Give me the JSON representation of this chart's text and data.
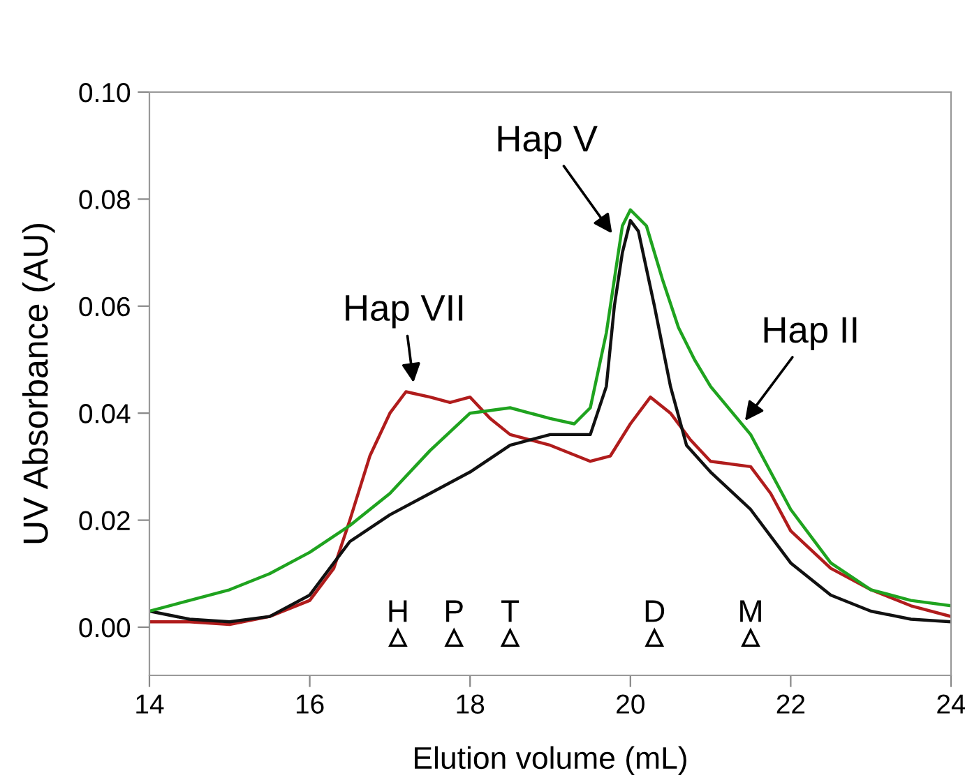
{
  "chart_data": {
    "type": "line",
    "xlabel": "Elution volume (mL)",
    "ylabel": "UV Absorbance (AU)",
    "xlim": [
      14,
      24
    ],
    "xticks": [
      14,
      16,
      18,
      20,
      22,
      24
    ],
    "ylim": [
      -0.009,
      0.1
    ],
    "yticks": [
      {
        "value": 0,
        "label": "0.00"
      },
      {
        "value": 0.02,
        "label": "0.02"
      },
      {
        "value": 0.04,
        "label": "0.04"
      },
      {
        "value": 0.06,
        "label": "0.06"
      },
      {
        "value": 0.08,
        "label": "0.08"
      },
      {
        "value": 0.1,
        "label": "0.10"
      }
    ],
    "grid": false,
    "legend": false,
    "line_style": "solid",
    "series": [
      {
        "color": "#b01c1c",
        "x": [
          14,
          14.5,
          15,
          15.5,
          16,
          16.3,
          16.5,
          16.75,
          17,
          17.2,
          17.5,
          17.75,
          18,
          18.25,
          18.5,
          19,
          19.5,
          19.75,
          20,
          20.25,
          20.5,
          20.75,
          21,
          21.5,
          21.75,
          22,
          22.5,
          23,
          23.5,
          24
        ],
        "values": [
          0.001,
          0.001,
          0.0005,
          0.002,
          0.005,
          0.011,
          0.02,
          0.032,
          0.04,
          0.044,
          0.043,
          0.042,
          0.043,
          0.039,
          0.036,
          0.034,
          0.031,
          0.032,
          0.038,
          0.043,
          0.04,
          0.035,
          0.031,
          0.03,
          0.025,
          0.018,
          0.011,
          0.007,
          0.004,
          0.002
        ]
      },
      {
        "color": "#111111",
        "x": [
          14,
          14.5,
          15,
          15.5,
          16,
          16.3,
          16.5,
          17,
          17.5,
          18,
          18.5,
          19,
          19.5,
          19.7,
          19.8,
          19.9,
          20,
          20.1,
          20.3,
          20.5,
          20.7,
          21,
          21.5,
          22,
          22.5,
          23,
          23.5,
          24
        ],
        "values": [
          0.003,
          0.0015,
          0.001,
          0.002,
          0.006,
          0.012,
          0.016,
          0.021,
          0.025,
          0.029,
          0.034,
          0.036,
          0.036,
          0.045,
          0.06,
          0.07,
          0.076,
          0.074,
          0.06,
          0.045,
          0.034,
          0.029,
          0.022,
          0.012,
          0.006,
          0.003,
          0.0015,
          0.001
        ]
      },
      {
        "color": "#1fa31f",
        "x": [
          14,
          14.5,
          15,
          15.5,
          16,
          16.5,
          17,
          17.5,
          18,
          18.5,
          19,
          19.3,
          19.5,
          19.7,
          19.8,
          19.9,
          20,
          20.2,
          20.4,
          20.6,
          20.8,
          21,
          21.5,
          22,
          22.5,
          23,
          23.5,
          24
        ],
        "values": [
          0.003,
          0.005,
          0.007,
          0.01,
          0.014,
          0.019,
          0.025,
          0.033,
          0.04,
          0.041,
          0.039,
          0.038,
          0.041,
          0.055,
          0.065,
          0.075,
          0.078,
          0.075,
          0.065,
          0.056,
          0.05,
          0.045,
          0.036,
          0.022,
          0.012,
          0.007,
          0.005,
          0.004
        ]
      }
    ],
    "annotations": [
      {
        "text": "Hap VII",
        "x": 17.3,
        "y": 0.045
      },
      {
        "text": "Hap V",
        "x": 19.8,
        "y": 0.073
      },
      {
        "text": "Hap II",
        "x": 21.4,
        "y": 0.038
      },
      {
        "text": "H",
        "x": 17.1,
        "y": -0.002
      },
      {
        "text": "P",
        "x": 17.8,
        "y": -0.002
      },
      {
        "text": "T",
        "x": 18.5,
        "y": -0.002
      },
      {
        "text": "D",
        "x": 20.3,
        "y": -0.002
      },
      {
        "text": "M",
        "x": 21.5,
        "y": -0.002
      }
    ]
  }
}
